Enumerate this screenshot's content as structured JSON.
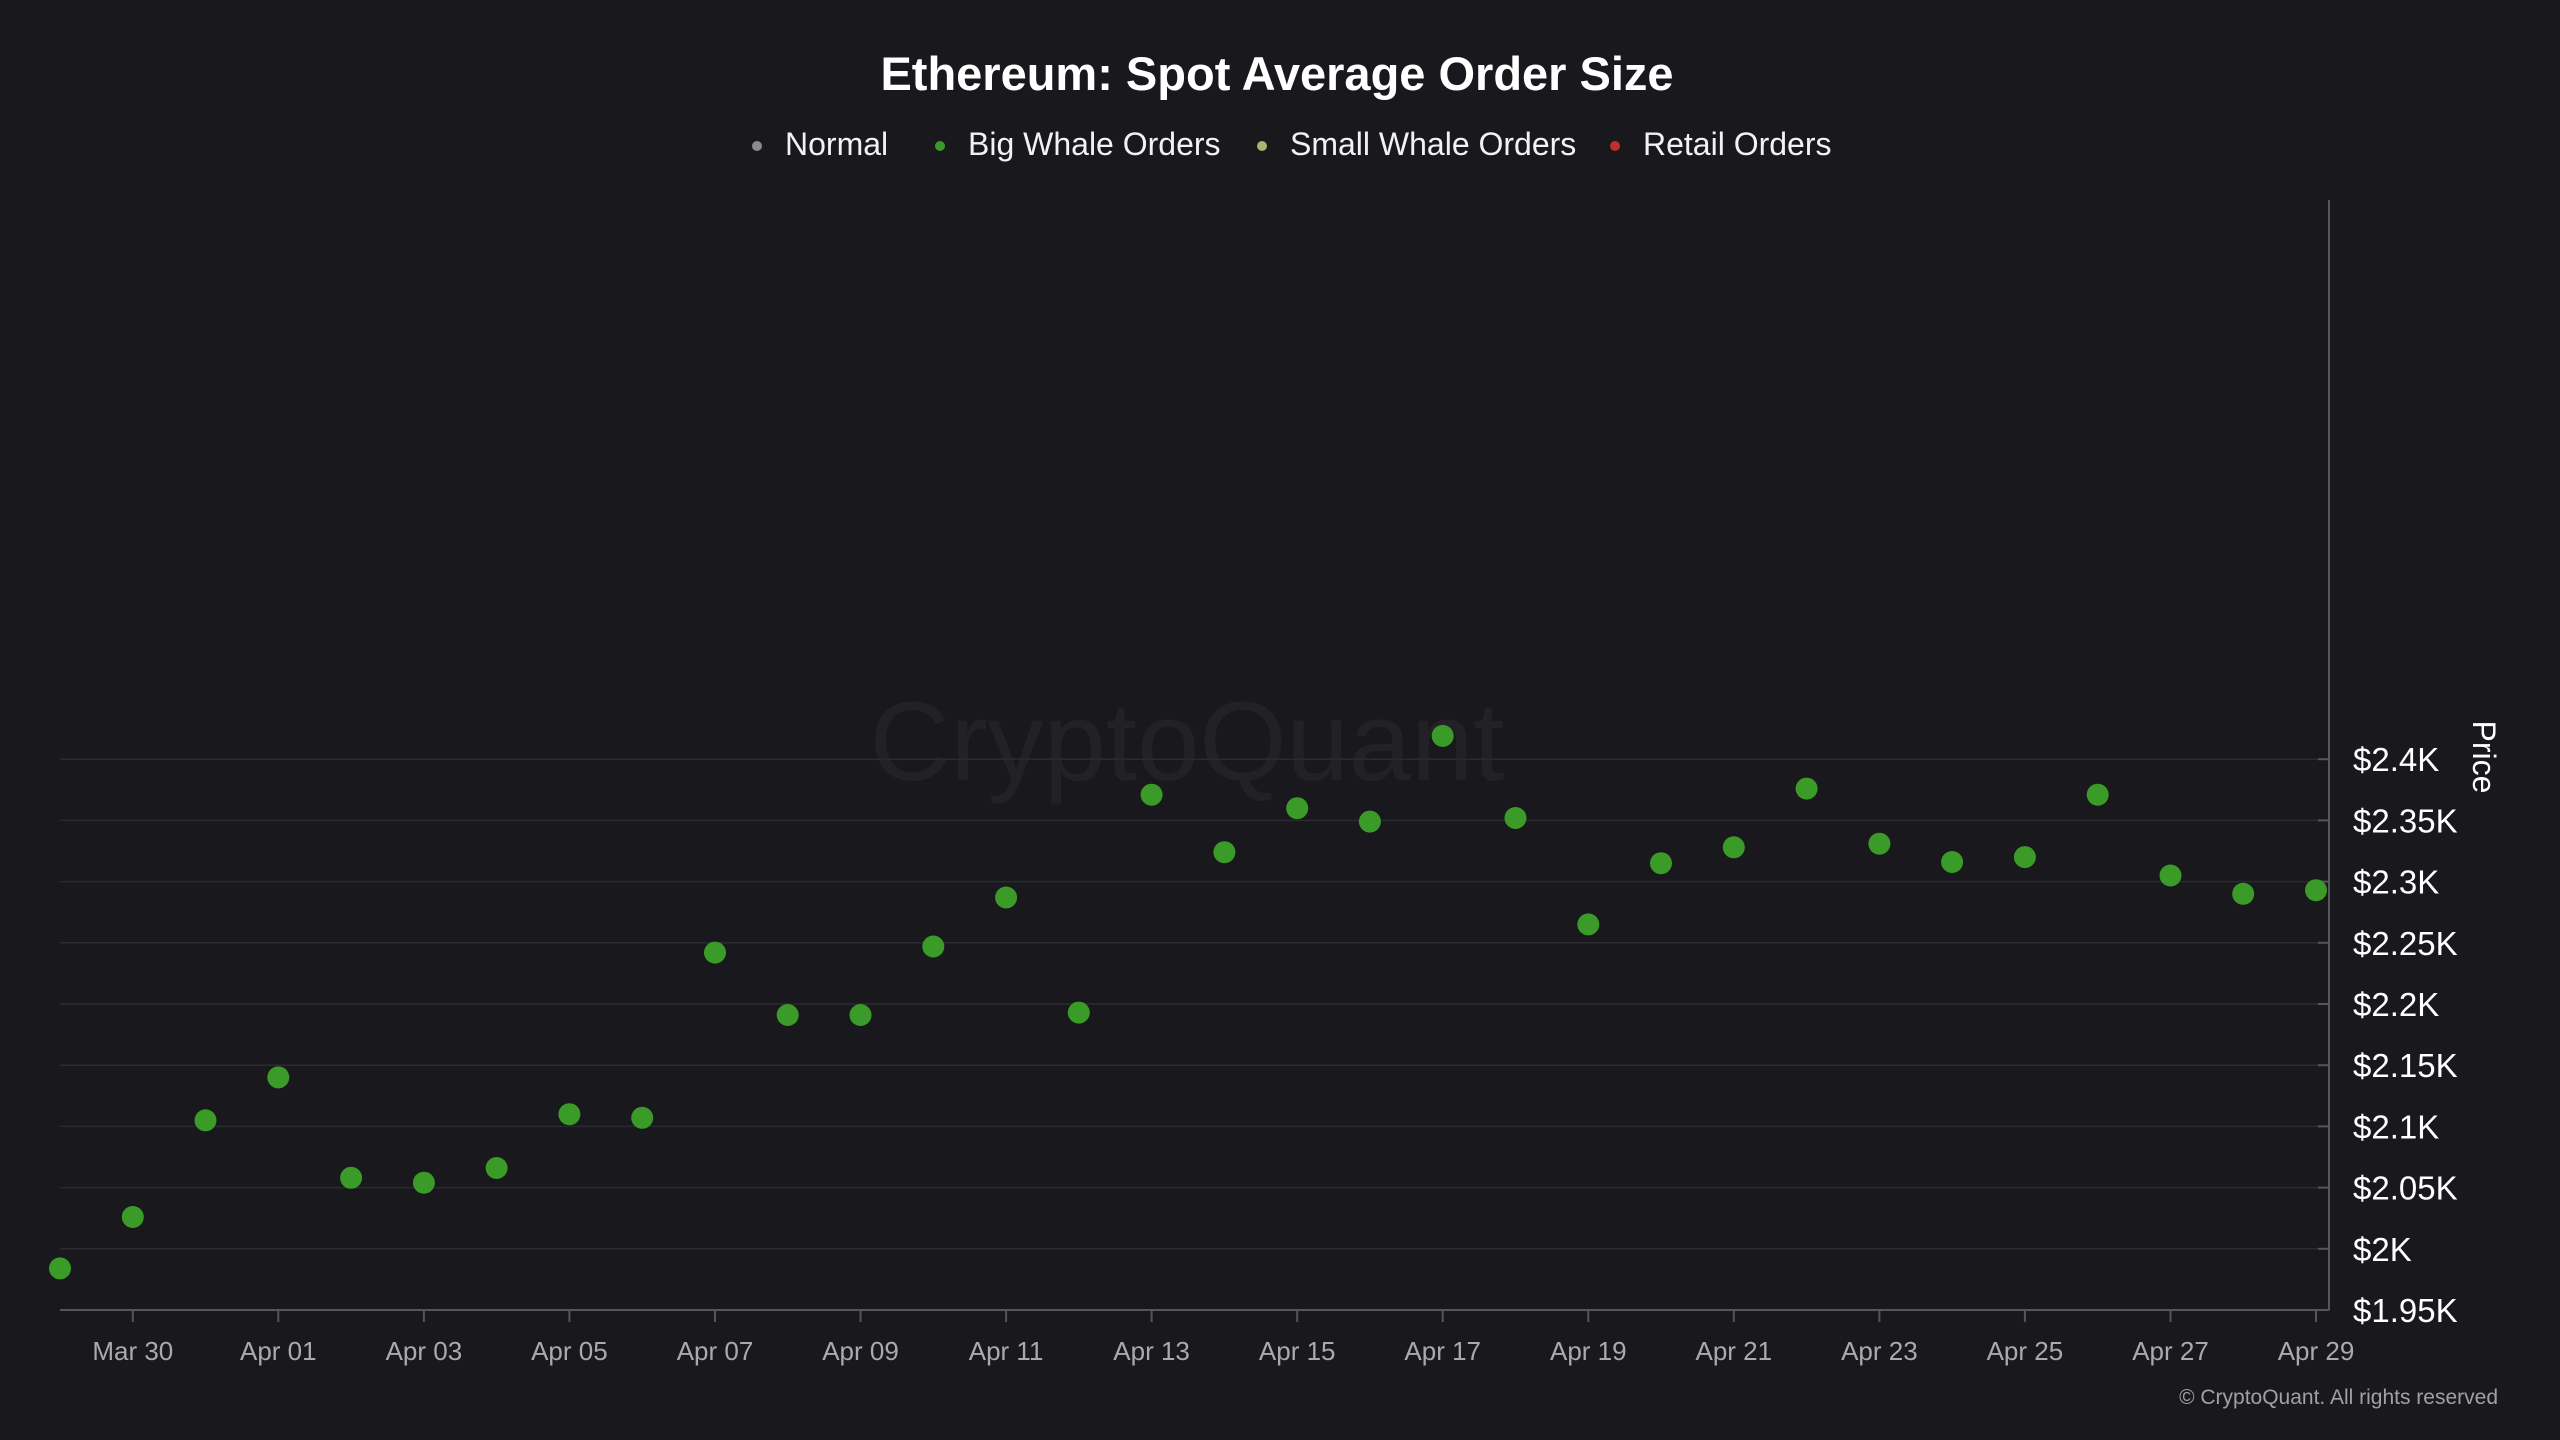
{
  "chart_data": {
    "type": "scatter",
    "title": "Ethereum: Spot Average Order Size",
    "legend": {
      "placement": "top-center",
      "items": [
        {
          "label": "Normal",
          "color": "#8a8a8f"
        },
        {
          "label": "Big Whale Orders",
          "color": "#3a9b28"
        },
        {
          "label": "Small Whale Orders",
          "color": "#a3b86c"
        },
        {
          "label": "Retail Orders",
          "color": "#c0302b"
        }
      ]
    },
    "y_axis": {
      "label": "Price",
      "position": "right",
      "ylim": [
        1950,
        2450
      ],
      "ticks": [
        1950,
        2000,
        2050,
        2100,
        2150,
        2200,
        2250,
        2300,
        2350,
        2400
      ],
      "tick_labels": [
        "$1.95K",
        "$2K",
        "$2.05K",
        "$2.1K",
        "$2.15K",
        "$2.2K",
        "$2.25K",
        "$2.3K",
        "$2.35K",
        "$2.4K"
      ]
    },
    "x_axis": {
      "start": "2025-03-29",
      "end": "2025-04-29",
      "tick_dates": [
        "2025-03-30",
        "2025-04-01",
        "2025-04-03",
        "2025-04-05",
        "2025-04-07",
        "2025-04-09",
        "2025-04-11",
        "2025-04-13",
        "2025-04-15",
        "2025-04-17",
        "2025-04-19",
        "2025-04-21",
        "2025-04-23",
        "2025-04-25",
        "2025-04-27",
        "2025-04-29"
      ],
      "tick_labels": [
        "Mar 30",
        "Apr 01",
        "Apr 03",
        "Apr 05",
        "Apr 07",
        "Apr 09",
        "Apr 11",
        "Apr 13",
        "Apr 15",
        "Apr 17",
        "Apr 19",
        "Apr 21",
        "Apr 23",
        "Apr 25",
        "Apr 27",
        "Apr 29"
      ]
    },
    "grid": true,
    "series": [
      {
        "name": "Big Whale Orders",
        "color": "#3a9b28",
        "points": [
          {
            "date": "2025-03-29",
            "price": 1984
          },
          {
            "date": "2025-03-30",
            "price": 2026
          },
          {
            "date": "2025-03-31",
            "price": 2105
          },
          {
            "date": "2025-04-01",
            "price": 2140
          },
          {
            "date": "2025-04-02",
            "price": 2058
          },
          {
            "date": "2025-04-03",
            "price": 2054
          },
          {
            "date": "2025-04-04",
            "price": 2066
          },
          {
            "date": "2025-04-05",
            "price": 2110
          },
          {
            "date": "2025-04-06",
            "price": 2107
          },
          {
            "date": "2025-04-07",
            "price": 2242
          },
          {
            "date": "2025-04-08",
            "price": 2191
          },
          {
            "date": "2025-04-09",
            "price": 2191
          },
          {
            "date": "2025-04-10",
            "price": 2247
          },
          {
            "date": "2025-04-11",
            "price": 2287
          },
          {
            "date": "2025-04-12",
            "price": 2193
          },
          {
            "date": "2025-04-13",
            "price": 2371
          },
          {
            "date": "2025-04-14",
            "price": 2324
          },
          {
            "date": "2025-04-15",
            "price": 2360
          },
          {
            "date": "2025-04-16",
            "price": 2349
          },
          {
            "date": "2025-04-17",
            "price": 2419
          },
          {
            "date": "2025-04-18",
            "price": 2352
          },
          {
            "date": "2025-04-19",
            "price": 2265
          },
          {
            "date": "2025-04-20",
            "price": 2315
          },
          {
            "date": "2025-04-21",
            "price": 2328
          },
          {
            "date": "2025-04-22",
            "price": 2376
          },
          {
            "date": "2025-04-23",
            "price": 2331
          },
          {
            "date": "2025-04-24",
            "price": 2316
          },
          {
            "date": "2025-04-25",
            "price": 2320
          },
          {
            "date": "2025-04-26",
            "price": 2371
          },
          {
            "date": "2025-04-27",
            "price": 2305
          },
          {
            "date": "2025-04-28",
            "price": 2290
          },
          {
            "date": "2025-04-29",
            "price": 2293
          }
        ]
      }
    ]
  },
  "watermark": "CryptoQuant",
  "copyright": "© CryptoQuant. All rights reserved"
}
